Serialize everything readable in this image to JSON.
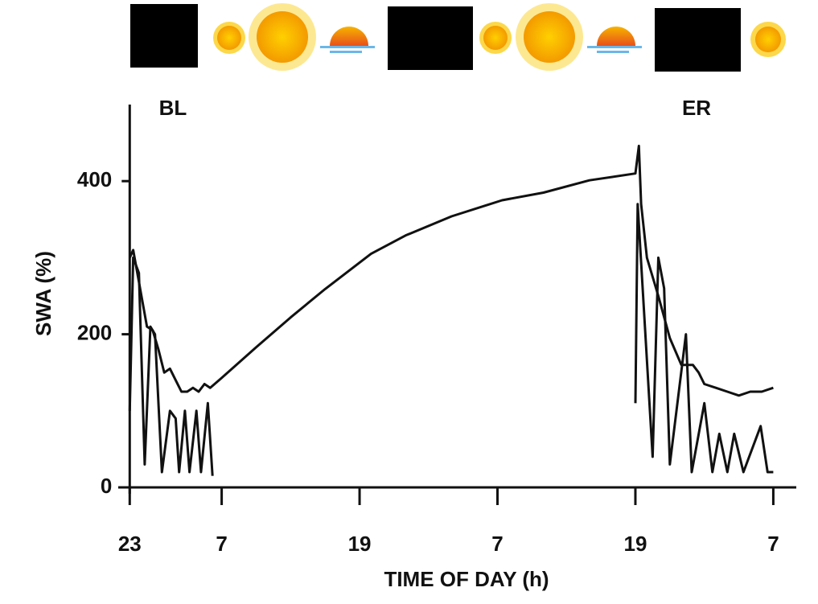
{
  "chart_data": {
    "type": "line",
    "x_label": "TIME OF DAY (h)",
    "y_label": "SWA (%)",
    "annotations": [
      "BL",
      "ER"
    ],
    "xlim": [
      -1,
      58
    ],
    "xticks": [
      {
        "value": 0,
        "label": "23"
      },
      {
        "value": 8,
        "label": "7"
      },
      {
        "value": 20,
        "label": "19"
      },
      {
        "value": 32,
        "label": "7"
      },
      {
        "value": 44,
        "label": "19"
      },
      {
        "value": 56,
        "label": "7"
      }
    ],
    "ylim": [
      0,
      500
    ],
    "yticks": [
      0,
      200,
      400
    ],
    "series": [
      {
        "color": "#111111",
        "x": [
          0,
          0.3,
          1.5,
          2,
          2.5,
          3,
          3.5,
          4,
          4.5,
          5,
          5.5,
          6,
          6.5,
          7,
          8,
          11,
          14,
          17,
          21,
          24,
          28,
          32.4,
          36,
          40,
          44,
          44.3,
          44.5,
          45,
          46,
          47,
          48,
          49,
          49.5,
          50,
          51,
          52,
          53,
          54,
          55,
          56
        ],
        "values": [
          300,
          310,
          210,
          205,
          180,
          150,
          155,
          140,
          125,
          125,
          130,
          125,
          135,
          130,
          143,
          183,
          222,
          259,
          305,
          329,
          354,
          375,
          385,
          401,
          410,
          446,
          370,
          300,
          250,
          195,
          160,
          160,
          150,
          135,
          130,
          125,
          120,
          125,
          125,
          130
        ]
      },
      {
        "color": "#111111",
        "x": [
          0,
          0.3,
          0.8,
          1.3,
          1.8,
          2.2,
          2.8,
          3.5,
          4,
          4.3,
          4.8,
          5.2,
          5.8,
          6.2,
          6.8,
          7.2,
          20,
          44,
          44.2,
          45.5,
          46,
          46.5,
          47,
          48.4,
          48.9,
          50,
          50.7,
          51.3,
          52,
          52.6,
          53.4,
          54.9,
          55.5,
          56
        ],
        "values": [
          100,
          300,
          280,
          30,
          210,
          200,
          20,
          100,
          90,
          20,
          100,
          20,
          100,
          20,
          110,
          15,
          null,
          110,
          370,
          40,
          300,
          260,
          30,
          200,
          20,
          110,
          20,
          70,
          20,
          70,
          20,
          80,
          20,
          20
        ]
      }
    ]
  }
}
